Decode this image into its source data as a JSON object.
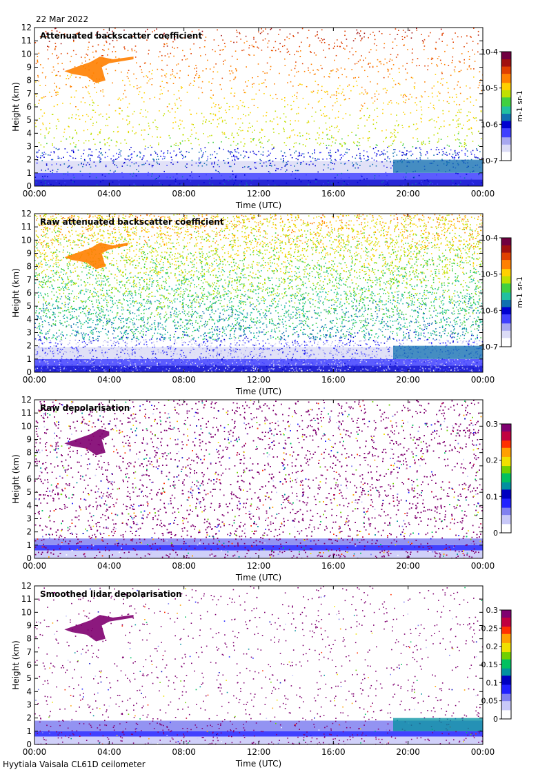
{
  "header": {
    "date": "22 Mar 2022"
  },
  "footer": {
    "instrument": "Hyytiala Vaisala CL61D ceilometer"
  },
  "colors": {
    "colormap_backscatter": [
      "#ffffff",
      "#dcdcf6",
      "#a8a8f0",
      "#4040ff",
      "#0000d0",
      "#1070b0",
      "#20c0a0",
      "#40d040",
      "#c0e000",
      "#ffd000",
      "#ff8000",
      "#e04000",
      "#a01010",
      "#700040"
    ],
    "colormap_depol": [
      "#ffffff",
      "#c8c8f8",
      "#8080f0",
      "#2020ff",
      "#0000c0",
      "#0090a0",
      "#00c060",
      "#70d000",
      "#f0e000",
      "#ffa000",
      "#ff3000",
      "#c00040",
      "#800070"
    ]
  },
  "chart_data": [
    {
      "type": "heatmap",
      "title": "Attenuated backscatter coefficient",
      "xlabel": "Time (UTC)",
      "ylabel": "Height (km)",
      "x_ticks": [
        "00:00",
        "04:00",
        "08:00",
        "12:00",
        "16:00",
        "20:00",
        "00:00"
      ],
      "xlim": [
        0,
        24
      ],
      "ylim": [
        0,
        12
      ],
      "y_ticks": [
        "0",
        "1",
        "2",
        "3",
        "4",
        "5",
        "6",
        "7",
        "8",
        "9",
        "10",
        "11",
        "12"
      ],
      "colorbar": {
        "scale": "log",
        "range": [
          1e-07,
          0.0001
        ],
        "labels": [
          "10-7",
          "10-6",
          "10-5",
          "10-4"
        ],
        "unit": "m-1 sr-1"
      },
      "features": [
        {
          "name": "boundary layer",
          "t_start": 0,
          "t_end": 24,
          "h_top": 1.9
        },
        {
          "name": "cirrus cloud",
          "t_start": 1.6,
          "t_end": 5.3,
          "h_bottom": 7.8,
          "h_top": 9.8
        },
        {
          "name": "cloud",
          "t_start": 19.2,
          "t_end": 24,
          "h_bottom": 1.0,
          "h_top": 2.0
        }
      ]
    },
    {
      "type": "heatmap",
      "title": "Raw attenuated backscatter coefficient",
      "xlabel": "Time (UTC)",
      "ylabel": "Height (km)",
      "x_ticks": [
        "00:00",
        "04:00",
        "08:00",
        "12:00",
        "16:00",
        "20:00",
        "00:00"
      ],
      "xlim": [
        0,
        24
      ],
      "ylim": [
        0,
        12
      ],
      "y_ticks": [
        "0",
        "1",
        "2",
        "3",
        "4",
        "5",
        "6",
        "7",
        "8",
        "9",
        "10",
        "11",
        "12"
      ],
      "colorbar": {
        "scale": "log",
        "range": [
          1e-07,
          0.0001
        ],
        "labels": [
          "10-7",
          "10-6",
          "10-5",
          "10-4"
        ],
        "unit": "m-1 sr-1"
      },
      "features": [
        {
          "name": "boundary layer",
          "t_start": 0,
          "t_end": 24,
          "h_top": 1.9
        },
        {
          "name": "cirrus cloud",
          "t_start": 1.6,
          "t_end": 5.0,
          "h_bottom": 7.8,
          "h_top": 9.8
        },
        {
          "name": "cloud",
          "t_start": 19.2,
          "t_end": 24,
          "h_bottom": 1.0,
          "h_top": 2.0
        }
      ]
    },
    {
      "type": "heatmap",
      "title": "Raw depolarisation",
      "xlabel": "Time (UTC)",
      "ylabel": "Height (km)",
      "x_ticks": [
        "00:00",
        "04:00",
        "08:00",
        "12:00",
        "16:00",
        "20:00",
        "00:00"
      ],
      "xlim": [
        0,
        24
      ],
      "ylim": [
        0,
        12
      ],
      "y_ticks": [
        "0",
        "1",
        "2",
        "3",
        "4",
        "5",
        "6",
        "7",
        "8",
        "9",
        "10",
        "11",
        "12"
      ],
      "colorbar": {
        "scale": "linear",
        "range": [
          0,
          0.3
        ],
        "labels": [
          "0",
          "0.1",
          "0.2",
          "0.3"
        ]
      },
      "features": [
        {
          "name": "boundary layer",
          "t_start": 0,
          "t_end": 24,
          "h_top": 1.5
        },
        {
          "name": "cirrus cloud",
          "t_start": 1.6,
          "t_end": 4.0,
          "h_bottom": 7.8,
          "h_top": 9.8
        }
      ]
    },
    {
      "type": "heatmap",
      "title": "Smoothed lidar depolarisation",
      "xlabel": "Time (UTC)",
      "ylabel": "Height (km)",
      "x_ticks": [
        "00:00",
        "04:00",
        "08:00",
        "12:00",
        "16:00",
        "20:00",
        "00:00"
      ],
      "xlim": [
        0,
        24
      ],
      "ylim": [
        0,
        12
      ],
      "y_ticks": [
        "0",
        "1",
        "2",
        "3",
        "4",
        "5",
        "6",
        "7",
        "8",
        "9",
        "10",
        "11",
        "12"
      ],
      "colorbar": {
        "scale": "linear",
        "range": [
          0,
          0.3
        ],
        "labels": [
          "0",
          "0.05",
          "0.1",
          "0.15",
          "0.2",
          "0.25",
          "0.3"
        ]
      },
      "features": [
        {
          "name": "boundary layer",
          "t_start": 0,
          "t_end": 24,
          "h_top": 1.8
        },
        {
          "name": "cirrus cloud",
          "t_start": 1.6,
          "t_end": 5.3,
          "h_bottom": 7.8,
          "h_top": 9.8
        },
        {
          "name": "cloud",
          "t_start": 19.2,
          "t_end": 24,
          "h_bottom": 1.0,
          "h_top": 2.0
        }
      ]
    }
  ]
}
